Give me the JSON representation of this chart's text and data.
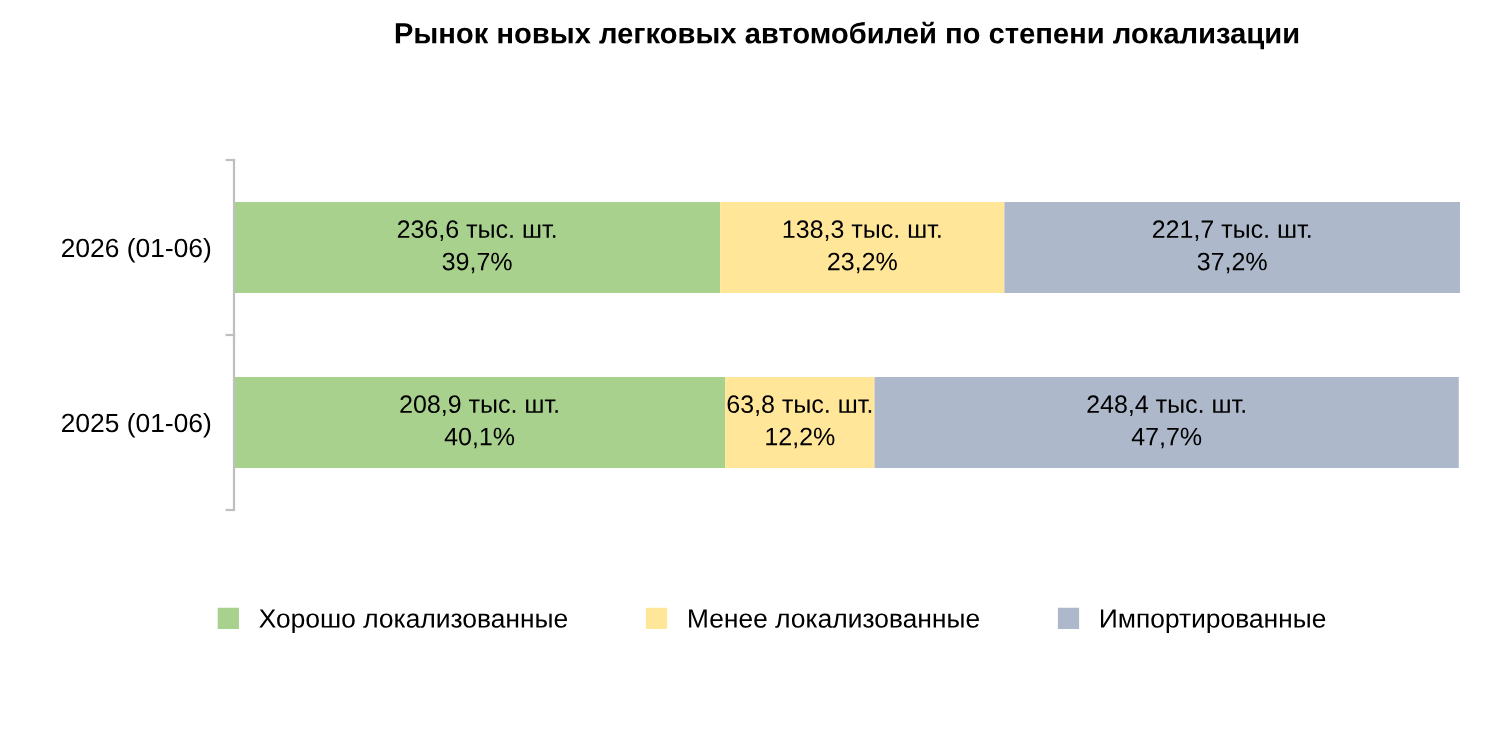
{
  "chart_data": {
    "type": "bar",
    "orientation": "horizontal",
    "stacked": true,
    "title": "Рынок новых легковых автомобилей по степени локализации",
    "categories": [
      "2026 (01-06)",
      "2025 (01-06)"
    ],
    "series": [
      {
        "name": "Хорошо локализованные",
        "color": "#a9d18e",
        "values": [
          39.7,
          40.1
        ],
        "value_labels": [
          "236,6 тыс. шт.\n39,7%",
          "208,9 тыс. шт.\n40,1%"
        ]
      },
      {
        "name": "Менее локализованные",
        "color": "#ffe699",
        "values": [
          23.2,
          12.2
        ],
        "value_labels": [
          "138,3 тыс. шт.\n23,2%",
          "63,8 тыс. шт.\n12,2%"
        ]
      },
      {
        "name": "Импортированные",
        "color": "#adb9ca",
        "values": [
          37.2,
          47.7
        ],
        "value_labels": [
          "221,7 тыс. шт.\n37,2%",
          "248,4 тыс. шт.\n47,7%"
        ]
      }
    ],
    "xlim": [
      0,
      100.1
    ],
    "tick_labels": "y",
    "legend": "bottom",
    "grid": false
  }
}
